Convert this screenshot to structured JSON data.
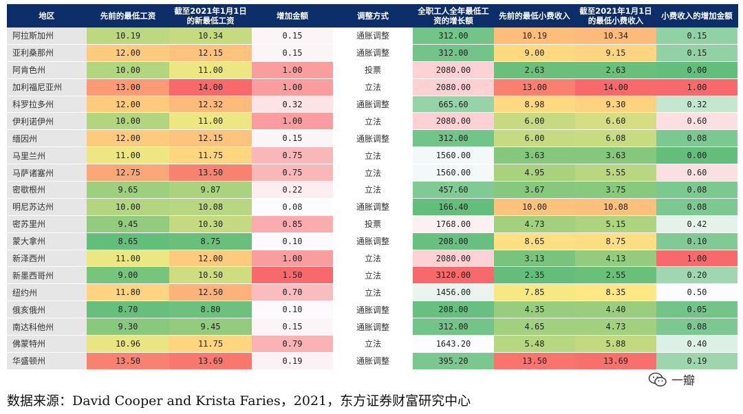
{
  "chart_data": {
    "type": "table",
    "columns": [
      "地区",
      "先前的最低工资",
      "截至2021年1月1日的新最低工资",
      "增加金额",
      "调整方式",
      "全职工人全年最低工资的增长额",
      "先前的最低小费收入",
      "截至2021年1月1日的最低小费收入",
      "小费收入的增加金额"
    ],
    "rows": [
      [
        "阿拉斯加州",
        "10.19",
        "10.34",
        "0.15",
        "通胀调整",
        "312.00",
        "10.19",
        "10.34",
        "0.15"
      ],
      [
        "亚利桑那州",
        "12.00",
        "12.15",
        "0.15",
        "通胀调整",
        "312.00",
        "9.00",
        "9.15",
        "0.15"
      ],
      [
        "阿肯色州",
        "10.00",
        "11.00",
        "1.00",
        "投票",
        "2080.00",
        "2.63",
        "2.63",
        "0.00"
      ],
      [
        "加利福尼亚州",
        "13.00",
        "14.00",
        "1.00",
        "立法",
        "2080.00",
        "13.00",
        "14.00",
        "1.00"
      ],
      [
        "科罗拉多州",
        "12.00",
        "12.32",
        "0.32",
        "通胀调整",
        "665.60",
        "8.98",
        "9.30",
        "0.32"
      ],
      [
        "伊利诺伊州",
        "10.00",
        "11.00",
        "1.00",
        "立法",
        "2080.00",
        "6.00",
        "6.60",
        "0.60"
      ],
      [
        "缅因州",
        "12.00",
        "12.15",
        "0.15",
        "通胀调整",
        "312.00",
        "6.00",
        "6.08",
        "0.08"
      ],
      [
        "马里兰州",
        "11.00",
        "11.75",
        "0.75",
        "立法",
        "1560.00",
        "3.63",
        "3.63",
        "0.00"
      ],
      [
        "马萨诸塞州",
        "12.75",
        "13.50",
        "0.75",
        "立法",
        "1560.00",
        "4.95",
        "5.55",
        "0.60"
      ],
      [
        "密歇根州",
        "9.65",
        "9.87",
        "0.22",
        "立法",
        "457.60",
        "3.67",
        "3.75",
        "0.08"
      ],
      [
        "明尼苏达州",
        "10.00",
        "10.08",
        "0.08",
        "通胀调整",
        "166.40",
        "10.00",
        "10.08",
        "0.08"
      ],
      [
        "密苏里州",
        "9.45",
        "10.30",
        "0.85",
        "投票",
        "1768.00",
        "4.73",
        "5.15",
        "0.42"
      ],
      [
        "蒙大拿州",
        "8.65",
        "8.75",
        "0.10",
        "通胀调整",
        "208.00",
        "8.65",
        "8.75",
        "0.10"
      ],
      [
        "新泽西州",
        "11.00",
        "12.00",
        "1.00",
        "立法",
        "2080.00",
        "3.13",
        "4.13",
        "1.00"
      ],
      [
        "新墨西哥州",
        "9.00",
        "10.50",
        "1.50",
        "立法",
        "3120.00",
        "2.35",
        "2.55",
        "0.20"
      ],
      [
        "纽约州",
        "11.80",
        "12.50",
        "0.70",
        "立法",
        "1456.00",
        "7.85",
        "8.35",
        "0.50"
      ],
      [
        "俄亥俄州",
        "8.70",
        "8.80",
        "0.10",
        "通胀调整",
        "208.00",
        "4.35",
        "4.40",
        "0.05"
      ],
      [
        "南达科他州",
        "9.30",
        "9.45",
        "0.15",
        "通胀调整",
        "312.00",
        "4.65",
        "4.73",
        "0.08"
      ],
      [
        "佛蒙特州",
        "10.96",
        "11.75",
        "0.79",
        "立法",
        "1643.20",
        "5.48",
        "5.88",
        "0.40"
      ],
      [
        "华盛顿州",
        "13.50",
        "13.69",
        "0.19",
        "通胀调整",
        "395.20",
        "13.50",
        "13.69",
        "0.19"
      ]
    ],
    "scales": {
      "1": {
        "type": "gyr",
        "min": 8.65,
        "max": 14.0
      },
      "2": {
        "type": "gyr",
        "min": 8.65,
        "max": 14.0
      },
      "3": {
        "type": "wr",
        "min": 0.08,
        "max": 1.5
      },
      "5": {
        "type": "gwr",
        "min": 166.4,
        "max": 3120.0
      },
      "6": {
        "type": "gyr",
        "min": 2.35,
        "max": 14.0
      },
      "7": {
        "type": "gyr",
        "min": 2.35,
        "max": 14.0
      },
      "8": {
        "type": "gwr",
        "min": 0.0,
        "max": 1.0
      }
    },
    "colors": {
      "green": "#63be7b",
      "yellow": "#ffeb84",
      "red": "#f8696b",
      "white": "#fcfcff"
    }
  },
  "source_note": "数据来源：David Cooper and Krista Faries，2021，东方证券财富研究中心",
  "watermark": "一瓣"
}
